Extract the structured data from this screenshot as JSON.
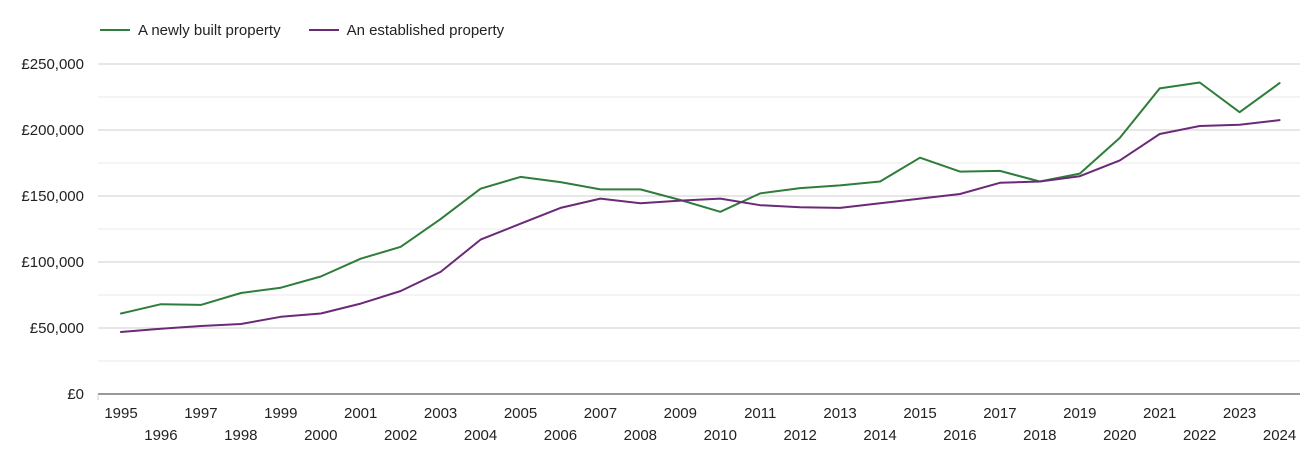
{
  "colors": {
    "newly_built": "#2e7d3a",
    "established": "#6a2a77",
    "grid": "#cfcfcf",
    "axis": "#333333",
    "text": "#222222"
  },
  "chart_data": {
    "type": "line",
    "title": "",
    "xlabel": "",
    "ylabel": "",
    "ylim": [
      0,
      250000
    ],
    "y_ticks": [
      0,
      50000,
      100000,
      150000,
      200000,
      250000
    ],
    "y_tick_labels": [
      "£0",
      "£50,000",
      "£100,000",
      "£150,000",
      "£200,000",
      "£250,000"
    ],
    "minor_gridlines_y": [
      25000,
      75000,
      125000,
      175000,
      225000
    ],
    "x": [
      1995,
      1996,
      1997,
      1998,
      1999,
      2000,
      2001,
      2002,
      2003,
      2004,
      2005,
      2006,
      2007,
      2008,
      2009,
      2010,
      2011,
      2012,
      2013,
      2014,
      2015,
      2016,
      2017,
      2018,
      2019,
      2020,
      2021,
      2022,
      2023,
      2024
    ],
    "x_tick_labels": [
      "1995",
      "1996",
      "1997",
      "1998",
      "1999",
      "2000",
      "2001",
      "2002",
      "2003",
      "2004",
      "2005",
      "2006",
      "2007",
      "2008",
      "2009",
      "2010",
      "2011",
      "2012",
      "2013",
      "2014",
      "2015",
      "2016",
      "2017",
      "2018",
      "2019",
      "2020",
      "2021",
      "2022",
      "2023",
      "2024"
    ],
    "legend_position": "top-left",
    "grid": true,
    "series": [
      {
        "name": "A newly built property",
        "color_key": "newly_built",
        "values": [
          61000,
          68000,
          67500,
          76500,
          80500,
          89000,
          102500,
          111500,
          132500,
          155500,
          164500,
          160500,
          155000,
          155000,
          147000,
          138000,
          152000,
          156000,
          158000,
          161000,
          179000,
          168500,
          169000,
          161000,
          167000,
          194000,
          231500,
          236000,
          213500,
          235500
        ]
      },
      {
        "name": "An established property",
        "color_key": "established",
        "values": [
          47000,
          49500,
          51500,
          53000,
          58500,
          61000,
          68500,
          78000,
          92500,
          117000,
          129000,
          141000,
          148000,
          144500,
          146500,
          148000,
          143000,
          141500,
          141000,
          144500,
          148000,
          151500,
          160000,
          161000,
          165000,
          177000,
          197000,
          203000,
          204000,
          207500
        ]
      }
    ]
  }
}
